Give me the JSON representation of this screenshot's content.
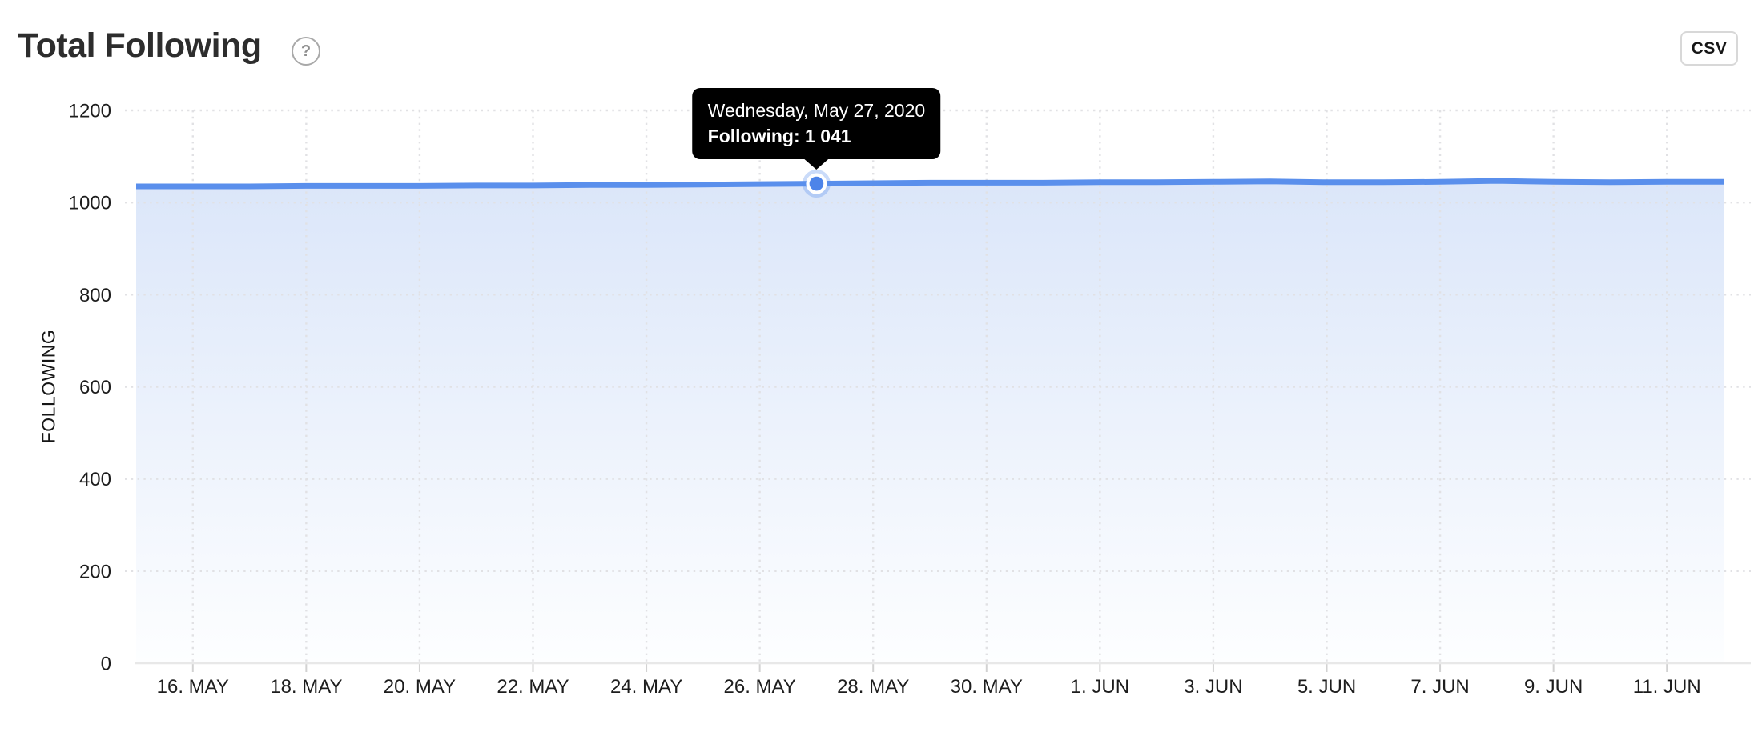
{
  "header": {
    "title": "Total Following",
    "help_icon": "?",
    "csv_button": "CSV"
  },
  "tooltip": {
    "date": "Wednesday, May 27, 2020",
    "value": "Following: 1 041",
    "point_index": 12
  },
  "colors": {
    "line": "#5a8fec",
    "area_top": "#dbe6f9",
    "area_bottom": "#fdfeff",
    "grid_dots": "#e1e1e4",
    "axis_line": "#e8e8e8",
    "axis_tick": "#d2d2d2",
    "tick_text": "#1d1d1d",
    "marker_fill": "#4d84e9",
    "marker_halo": "rgba(91,143,236,0.32)",
    "tooltip_bg": "#000000"
  },
  "chart_data": {
    "type": "area",
    "title": "Total Following",
    "xlabel": "",
    "ylabel": "FOLLOWING",
    "ylim": [
      0,
      1200
    ],
    "y_ticks": [
      0,
      200,
      400,
      600,
      800,
      1000,
      1200
    ],
    "grid": "dotted",
    "legend": "none",
    "x": [
      "May 15",
      "May 16",
      "May 17",
      "May 18",
      "May 19",
      "May 20",
      "May 21",
      "May 22",
      "May 23",
      "May 24",
      "May 25",
      "May 26",
      "May 27",
      "May 28",
      "May 29",
      "May 30",
      "May 31",
      "Jun 1",
      "Jun 2",
      "Jun 3",
      "Jun 4",
      "Jun 5",
      "Jun 6",
      "Jun 7",
      "Jun 8",
      "Jun 9",
      "Jun 10",
      "Jun 11",
      "Jun 12"
    ],
    "values": [
      1035,
      1035,
      1035,
      1036,
      1036,
      1036,
      1037,
      1037,
      1038,
      1038,
      1039,
      1040,
      1041,
      1042,
      1043,
      1043,
      1043,
      1044,
      1044,
      1045,
      1046,
      1044,
      1044,
      1045,
      1047,
      1045,
      1044,
      1045,
      1045
    ],
    "x_tick_labels": [
      {
        "i": 1,
        "label": "16. MAY"
      },
      {
        "i": 3,
        "label": "18. MAY"
      },
      {
        "i": 5,
        "label": "20. MAY"
      },
      {
        "i": 7,
        "label": "22. MAY"
      },
      {
        "i": 9,
        "label": "24. MAY"
      },
      {
        "i": 11,
        "label": "26. MAY"
      },
      {
        "i": 13,
        "label": "28. MAY"
      },
      {
        "i": 15,
        "label": "30. MAY"
      },
      {
        "i": 17,
        "label": "1. JUN"
      },
      {
        "i": 19,
        "label": "3. JUN"
      },
      {
        "i": 21,
        "label": "5. JUN"
      },
      {
        "i": 23,
        "label": "7. JUN"
      },
      {
        "i": 25,
        "label": "9. JUN"
      },
      {
        "i": 27,
        "label": "11. JUN"
      }
    ]
  }
}
